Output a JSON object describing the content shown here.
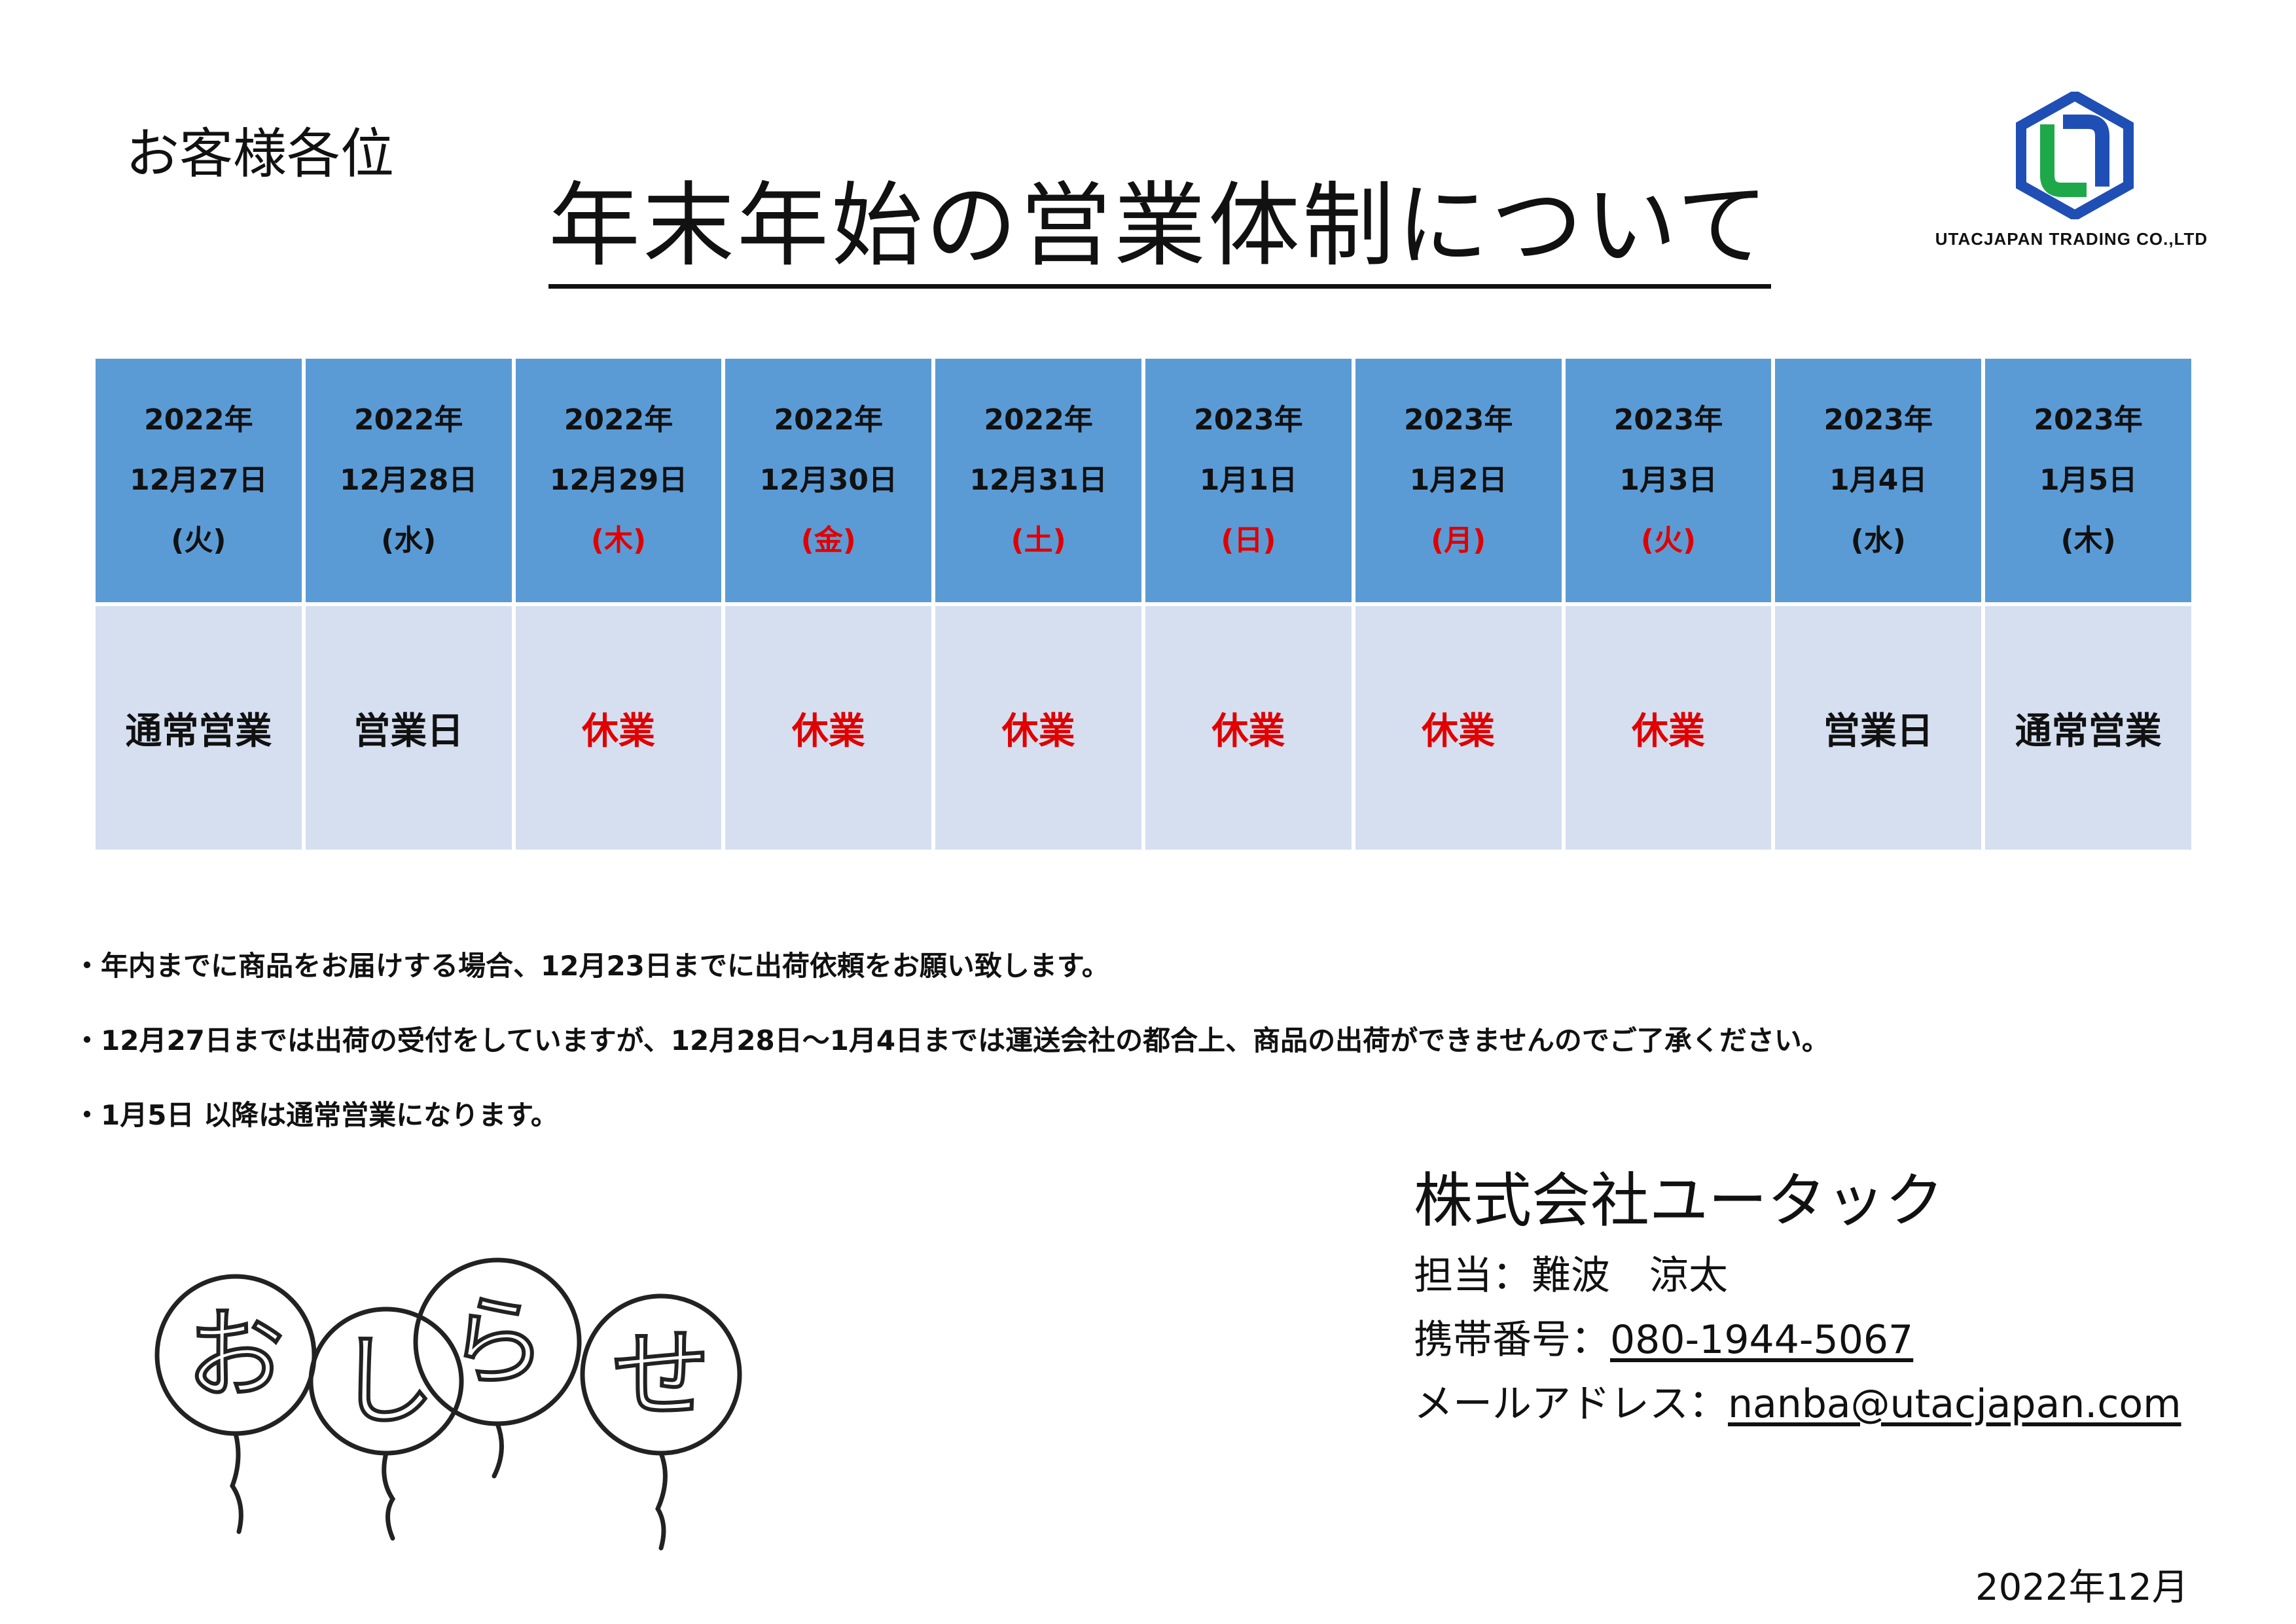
{
  "header": {
    "salutation": "お客様各位",
    "title": "年末年始の営業体制について"
  },
  "logo": {
    "company_en": "UTACJAPAN TRADING CO.,LTD",
    "colors": {
      "blue": "#1f4fb5",
      "green": "#1fa84a"
    }
  },
  "schedule": [
    {
      "year": "2022年",
      "date": "12月27日",
      "weekday": "(火)",
      "status": "通常営業",
      "holiday": false
    },
    {
      "year": "2022年",
      "date": "12月28日",
      "weekday": "(水)",
      "status": "営業日",
      "holiday": false
    },
    {
      "year": "2022年",
      "date": "12月29日",
      "weekday": "(木)",
      "status": "休業",
      "holiday": true
    },
    {
      "year": "2022年",
      "date": "12月30日",
      "weekday": "(金)",
      "status": "休業",
      "holiday": true
    },
    {
      "year": "2022年",
      "date": "12月31日",
      "weekday": "(土)",
      "status": "休業",
      "holiday": true
    },
    {
      "year": "2023年",
      "date": "1月1日",
      "weekday": "(日)",
      "status": "休業",
      "holiday": true
    },
    {
      "year": "2023年",
      "date": "1月2日",
      "weekday": "(月)",
      "status": "休業",
      "holiday": true
    },
    {
      "year": "2023年",
      "date": "1月3日",
      "weekday": "(火)",
      "status": "休業",
      "holiday": true
    },
    {
      "year": "2023年",
      "date": "1月4日",
      "weekday": "(水)",
      "status": "営業日",
      "holiday": false
    },
    {
      "year": "2023年",
      "date": "1月5日",
      "weekday": "(木)",
      "status": "通常営業",
      "holiday": false
    }
  ],
  "colors": {
    "header_bg": "#5b9bd5",
    "body_bg": "#d6dff0",
    "holiday_red": "#e00000"
  },
  "notes": [
    "・年内までに商品をお届けする場合、12月23日までに出荷依頼をお願い致します。",
    "・12月27日までは出荷の受付をしていますが、12月28日～1月4日までは運送会社の都合上、商品の出荷ができませんのでご了承ください。",
    "・1月5日 以降は通常営業になります。"
  ],
  "contact": {
    "company": "株式会社ユータック",
    "person_label": "担当：",
    "person": "難波　涼太",
    "phone_label": "携帯番号：",
    "phone": "080-1944-5067",
    "email_label": "メールアドレス：",
    "email": "nanba@utacjapan.com"
  },
  "illustration": {
    "letters": [
      "お",
      "し",
      "ら",
      "せ"
    ]
  },
  "footer_date": "2022年12月"
}
